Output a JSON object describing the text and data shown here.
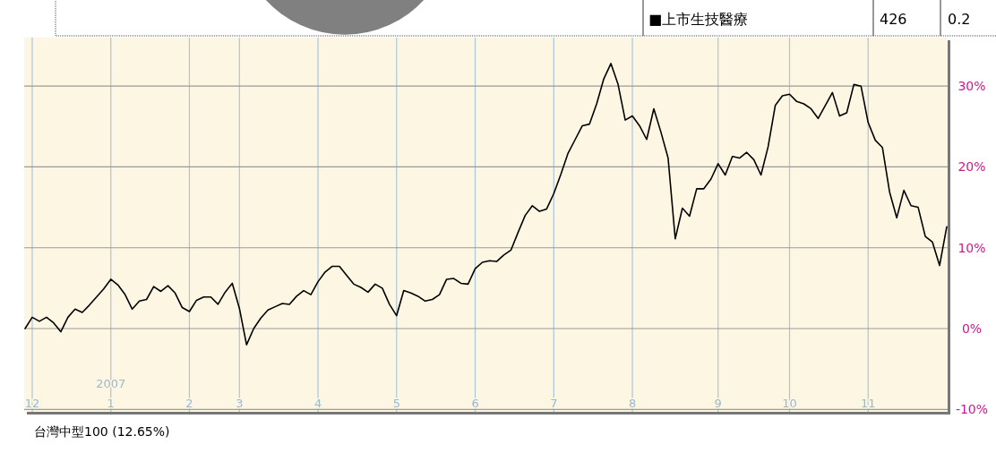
{
  "chart_data": {
    "type": "line",
    "categories": [
      null,
      "12",
      null,
      null,
      null,
      null,
      null,
      null,
      null,
      null,
      null,
      null,
      "2007\n1",
      null,
      null,
      null,
      null,
      null,
      null,
      null,
      null,
      null,
      null,
      "2",
      null,
      null,
      null,
      null,
      null,
      null,
      "3",
      null,
      null,
      null,
      null,
      null,
      null,
      null,
      null,
      null,
      null,
      "4",
      null,
      null,
      null,
      null,
      null,
      null,
      null,
      null,
      null,
      null,
      "5",
      null,
      null,
      null,
      null,
      null,
      null,
      null,
      null,
      null,
      null,
      "6",
      null,
      null,
      null,
      null,
      null,
      null,
      null,
      null,
      null,
      null,
      "7",
      null,
      null,
      null,
      null,
      null,
      null,
      null,
      null,
      null,
      null,
      "8",
      null,
      null,
      null,
      null,
      null,
      null,
      null,
      null,
      null,
      null,
      null,
      "9",
      null,
      null,
      null,
      null,
      null,
      null,
      null,
      null,
      null,
      "10",
      null,
      null,
      null,
      null,
      null,
      null,
      null,
      null,
      null,
      null,
      "11",
      null,
      null,
      null,
      null,
      null,
      null,
      null,
      null,
      null,
      null,
      null
    ],
    "series": [
      {
        "name": "台灣中型100  (12.65%)",
        "color": "#000000",
        "values": [
          0.0,
          1.4,
          0.9,
          1.4,
          0.7,
          -0.4,
          1.4,
          2.4,
          2.0,
          2.9,
          3.9,
          4.9,
          6.1,
          5.4,
          4.2,
          2.4,
          3.4,
          3.6,
          5.2,
          4.6,
          5.3,
          4.4,
          2.6,
          2.1,
          3.5,
          3.9,
          3.9,
          3.0,
          4.5,
          5.6,
          2.5,
          -2.0,
          0.0,
          1.3,
          2.3,
          2.7,
          3.1,
          3.0,
          4.0,
          4.7,
          4.2,
          5.8,
          7.0,
          7.7,
          7.7,
          6.6,
          5.5,
          5.1,
          4.5,
          5.5,
          5.0,
          3.0,
          1.6,
          4.7,
          4.4,
          4.0,
          3.4,
          3.6,
          4.2,
          6.1,
          6.2,
          5.6,
          5.5,
          7.4,
          8.2,
          8.4,
          8.3,
          9.1,
          9.7,
          11.9,
          14.0,
          15.2,
          14.5,
          14.8,
          16.7,
          19.1,
          21.7,
          23.4,
          25.1,
          25.3,
          27.8,
          30.9,
          32.8,
          30.2,
          25.8,
          26.3,
          25.1,
          23.4,
          27.2,
          24.3,
          21.1,
          11.1,
          14.9,
          13.9,
          17.3,
          17.3,
          18.5,
          20.4,
          19.0,
          21.3,
          21.1,
          21.8,
          20.9,
          19.0,
          22.5,
          27.6,
          28.8,
          29.0,
          28.1,
          27.8,
          27.2,
          26.0,
          27.6,
          29.2,
          26.3,
          26.7,
          30.2,
          30.0,
          25.5,
          23.3,
          22.4,
          16.9,
          13.7,
          17.1,
          15.2,
          15.0,
          11.4,
          10.7,
          7.8,
          12.6
        ]
      }
    ],
    "ylim": [
      -10.3,
      36
    ],
    "yticks": [
      {
        "value": -10,
        "label": "-10%"
      },
      {
        "value": 0,
        "label": "0%"
      },
      {
        "value": 10,
        "label": "10%"
      },
      {
        "value": 20,
        "label": "20%"
      },
      {
        "value": 30,
        "label": "30%"
      }
    ],
    "grid": true,
    "legend": "bottom",
    "annotations": [
      "■上市生技醫療",
      "426",
      "0.2"
    ]
  }
}
